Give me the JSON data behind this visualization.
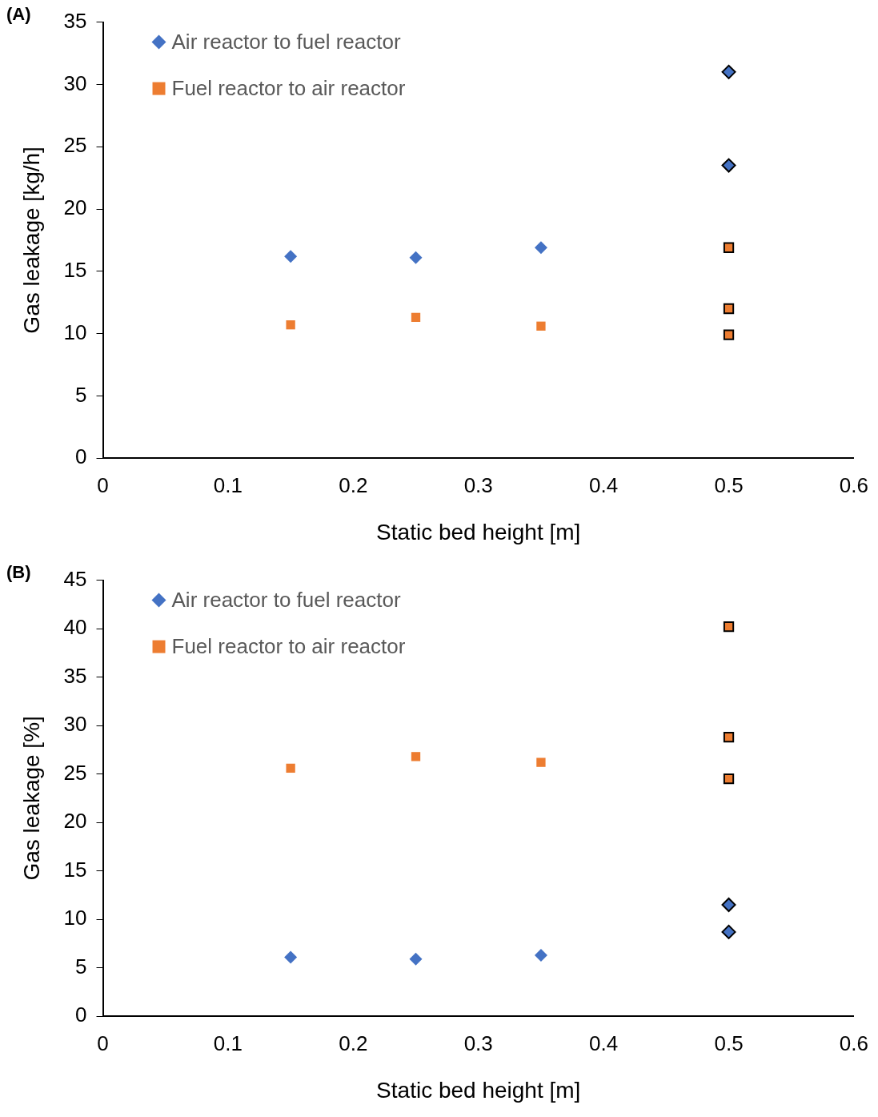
{
  "chart_data": [
    {
      "type": "scatter",
      "title": "(A)",
      "xlabel": "Static bed height [m]",
      "ylabel": "Gas leakage [kg/h]",
      "xlim": [
        0,
        0.6
      ],
      "xticks": [
        0,
        0.1,
        0.2,
        0.3,
        0.4,
        0.5,
        0.6
      ],
      "ylim": [
        0,
        35
      ],
      "yticks": [
        0,
        5,
        10,
        15,
        20,
        25,
        30,
        35
      ],
      "grid": false,
      "legend": "top left",
      "series": [
        {
          "name": "Air reactor to fuel reactor",
          "color": "#4472c4",
          "marker": "diamond",
          "x": [
            0.15,
            0.25,
            0.35
          ],
          "values": [
            16.2,
            16.1,
            16.9
          ]
        },
        {
          "name": "Fuel reactor to air reactor",
          "color": "#ed7d31",
          "marker": "square",
          "x": [
            0.15,
            0.25,
            0.35
          ],
          "values": [
            10.7,
            11.3,
            10.6
          ]
        },
        {
          "color": "#4472c4",
          "marker": "diamond",
          "x": [
            0.5,
            0.5
          ],
          "values": [
            31.0,
            23.5
          ]
        },
        {
          "color": "#ed7d31",
          "marker": "square",
          "x": [
            0.5,
            0.5,
            0.5
          ],
          "values": [
            16.9,
            12.0,
            9.9
          ]
        }
      ]
    },
    {
      "type": "scatter",
      "title": "(B)",
      "xlabel": "Static bed height [m]",
      "ylabel": "Gas leakage [%]",
      "xlim": [
        0,
        0.6
      ],
      "xticks": [
        0,
        0.1,
        0.2,
        0.3,
        0.4,
        0.5,
        0.6
      ],
      "ylim": [
        0,
        45
      ],
      "yticks": [
        0,
        5,
        10,
        15,
        20,
        25,
        30,
        35,
        40,
        45
      ],
      "grid": false,
      "legend": "top left",
      "series": [
        {
          "name": "Air reactor to fuel reactor",
          "color": "#4472c4",
          "marker": "diamond",
          "x": [
            0.15,
            0.25,
            0.35
          ],
          "values": [
            6.1,
            5.9,
            6.3
          ]
        },
        {
          "name": "Fuel reactor to air reactor",
          "color": "#ed7d31",
          "marker": "square",
          "x": [
            0.15,
            0.25,
            0.35
          ],
          "values": [
            25.6,
            26.8,
            26.2
          ]
        },
        {
          "color": "#4472c4",
          "marker": "diamond",
          "x": [
            0.5,
            0.5
          ],
          "values": [
            11.5,
            8.7
          ]
        },
        {
          "color": "#ed7d31",
          "marker": "square",
          "x": [
            0.5,
            0.5,
            0.5
          ],
          "values": [
            40.2,
            28.8,
            24.5
          ]
        }
      ]
    }
  ]
}
